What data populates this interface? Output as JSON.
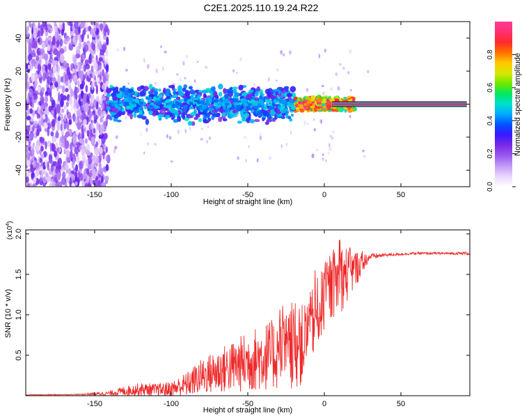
{
  "title": "C2E1.2025.110.19.24.R22",
  "chart_data": [
    {
      "type": "heatmap",
      "name": "spectrogram",
      "xlabel": "Height of straight line (km)",
      "ylabel": "Frequency (Hz)",
      "xlim": [
        -195,
        95
      ],
      "ylim": [
        -50,
        50
      ],
      "xticks": [
        -150,
        -100,
        -50,
        0,
        50
      ],
      "yticks": [
        -40,
        -20,
        0,
        20,
        40
      ],
      "noise_region_x": [
        -195,
        -141
      ],
      "signal_band": {
        "x_start": -141,
        "x_end": 93,
        "center_hz": 0
      },
      "colorbar": {
        "label": "Normalized spectral amplitude",
        "range": [
          0,
          1
        ],
        "ticks": [
          "0.0",
          "0.2",
          "0.4",
          "0.6",
          "0.8"
        ],
        "tick_values": [
          0.0,
          0.2,
          0.4,
          0.6,
          0.8
        ],
        "colors": [
          "#ffffff",
          "#ead6fd",
          "#c49cf6",
          "#9b59f0",
          "#7a2be6",
          "#3b17ff",
          "#0050ff",
          "#00a8ff",
          "#00e0d0",
          "#00e860",
          "#70e800",
          "#d8e800",
          "#ffc800",
          "#ff7000",
          "#ff2a2a",
          "#ff3070",
          "#ff3c96"
        ]
      }
    },
    {
      "type": "line",
      "name": "snr",
      "xlabel": "Height of straight line (km)",
      "ylabel": "SNR (10 * v/v)",
      "scale_label": "(x10",
      "scale_exponent": "4",
      "scale_close": ")",
      "xlim": [
        -195,
        95
      ],
      "ylim": [
        0,
        2.05
      ],
      "xticks": [
        -150,
        -100,
        -50,
        0,
        50
      ],
      "yticks": [
        "0.5",
        "1.0",
        "1.5",
        "2.0"
      ],
      "ytick_values": [
        0.5,
        1.0,
        1.5,
        2.0
      ],
      "color": "#ee2b2b",
      "x": [
        -195,
        -160,
        -140,
        -130,
        -120,
        -110,
        -100,
        -90,
        -80,
        -70,
        -60,
        -50,
        -40,
        -30,
        -20,
        -15,
        -10,
        -5,
        0,
        5,
        10,
        15,
        20,
        25,
        30,
        40,
        50,
        60,
        70,
        80,
        90,
        95
      ],
      "y": [
        0.01,
        0.015,
        0.03,
        0.06,
        0.08,
        0.07,
        0.08,
        0.14,
        0.24,
        0.3,
        0.36,
        0.42,
        0.48,
        0.52,
        0.58,
        0.62,
        0.8,
        1.0,
        1.2,
        1.35,
        1.45,
        1.5,
        1.56,
        1.65,
        1.72,
        1.74,
        1.75,
        1.76,
        1.76,
        1.76,
        1.76,
        1.76
      ],
      "noise_amplitude": [
        0.005,
        0.005,
        0.03,
        0.06,
        0.08,
        0.08,
        0.1,
        0.15,
        0.22,
        0.28,
        0.32,
        0.38,
        0.42,
        0.45,
        0.5,
        0.5,
        0.45,
        0.45,
        0.4,
        0.4,
        0.45,
        0.35,
        0.25,
        0.12,
        0.04,
        0.02,
        0.015,
        0.015,
        0.015,
        0.015,
        0.02,
        0.02
      ]
    }
  ]
}
